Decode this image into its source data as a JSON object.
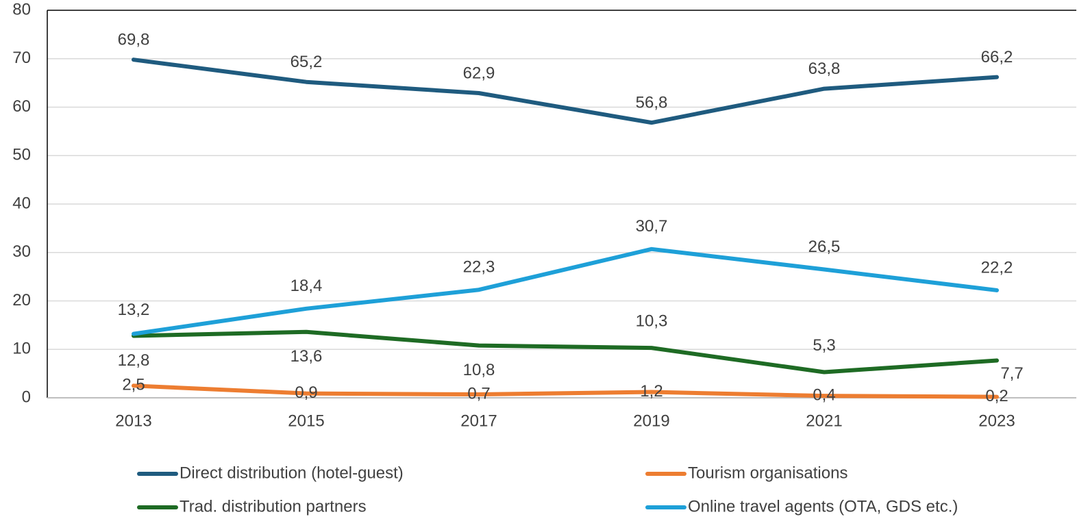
{
  "chart_data": {
    "type": "line",
    "categories": [
      "2013",
      "2015",
      "2017",
      "2019",
      "2021",
      "2023"
    ],
    "series": [
      {
        "name": "Direct distribution (hotel-guest)",
        "color": "#1f5b7f",
        "values": [
          69.8,
          65.2,
          62.9,
          56.8,
          63.8,
          66.2
        ],
        "value_labels": [
          "69,8",
          "65,2",
          "62,9",
          "56,8",
          "63,8",
          "66,2"
        ]
      },
      {
        "name": "Tourism organisations",
        "color": "#ed7d31",
        "values": [
          2.5,
          0.9,
          0.7,
          1.2,
          0.4,
          0.2
        ],
        "value_labels": [
          "2,5",
          "0,9",
          "0,7",
          "1,2",
          "0,4",
          "0,2"
        ]
      },
      {
        "name": "Trad. distribution partners",
        "color": "#1e6b24",
        "values": [
          12.8,
          13.6,
          10.8,
          10.3,
          5.3,
          7.7
        ],
        "value_labels": [
          "12,8",
          "13,6",
          "10,8",
          "10,3",
          "5,3",
          "7,7"
        ]
      },
      {
        "name": "Online travel agents (OTA, GDS etc.)",
        "color": "#1ea0d8",
        "values": [
          13.2,
          18.4,
          22.3,
          30.7,
          26.5,
          22.2
        ],
        "value_labels": [
          "13,2",
          "18,4",
          "22,3",
          "30,7",
          "26,5",
          "22,2"
        ]
      }
    ],
    "ylim": [
      0,
      80
    ],
    "yticks": [
      0,
      10,
      20,
      30,
      40,
      50,
      60,
      70,
      80
    ],
    "grid": true,
    "legend": "bottom"
  }
}
